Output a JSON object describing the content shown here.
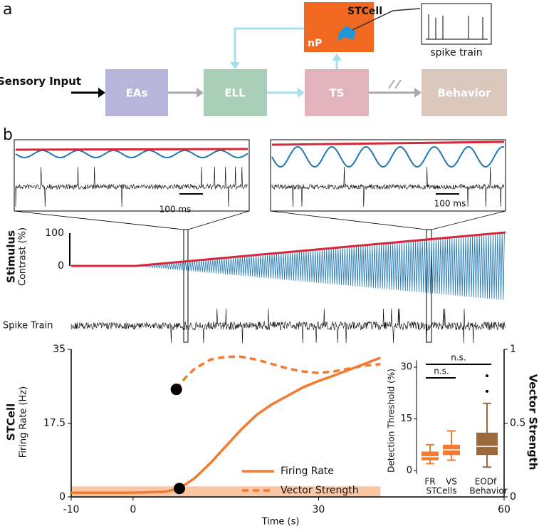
{
  "panel_labels": [
    "a",
    "b"
  ],
  "diagram": {
    "input": "Sensory Input",
    "nodes": [
      "EAs",
      "ELL",
      "TS",
      "Behavior"
    ],
    "cell": "STCell",
    "nucleus": "nP",
    "recording": "spike train"
  },
  "traces": {
    "stimulus": "Stimulus",
    "contrast": "Contrast (%)",
    "contrast_ticks": [
      0,
      100
    ],
    "spikes": "Spike Train",
    "scale_bars": [
      "100 ms",
      "100 ms"
    ]
  },
  "chart_data": [
    {
      "type": "line",
      "title": "STCell",
      "y_label": "Firing Rate (Hz)",
      "y2_label": "Vector Strength",
      "x_label": "Time (s)",
      "xlim": [
        -10,
        60
      ],
      "xticks": [
        -10,
        0,
        30,
        60
      ],
      "ylim": [
        0,
        35
      ],
      "yticks": [
        0,
        17.5,
        35
      ],
      "y2lim": [
        0,
        1
      ],
      "y2ticks": [
        0,
        0.5,
        1
      ],
      "noise_band": {
        "x": [
          -10,
          40
        ],
        "y": [
          0,
          2.5
        ],
        "color": "#f9c7a6"
      },
      "series": [
        {
          "name": "Firing Rate",
          "color": "#f47a30",
          "dash": false,
          "x": [
            -10,
            -5,
            0,
            5,
            7.5,
            10,
            12.5,
            15,
            17.5,
            20,
            22.5,
            25,
            27.5,
            30,
            32.5,
            35,
            37.5,
            40
          ],
          "values": [
            1,
            1,
            1,
            1.2,
            2,
            4.5,
            8,
            12,
            16,
            19.5,
            22,
            24,
            26,
            27.5,
            28.8,
            30.2,
            31.6,
            33
          ]
        },
        {
          "name": "Vector Strength",
          "color": "#f47a30",
          "dash": true,
          "axis": "y2",
          "x": [
            7,
            8.5,
            10,
            12.5,
            15,
            17.5,
            20,
            22.5,
            25,
            27.5,
            30,
            32.5,
            35,
            37.5,
            40
          ],
          "values": [
            0.73,
            0.81,
            0.87,
            0.93,
            0.95,
            0.95,
            0.93,
            0.9,
            0.87,
            0.85,
            0.84,
            0.85,
            0.87,
            0.89,
            0.9
          ]
        }
      ],
      "markers": [
        {
          "x": 7,
          "y": 25.5
        },
        {
          "x": 7.5,
          "y": 2
        }
      ],
      "legend": "lower right"
    },
    {
      "type": "box",
      "y_label": "Detection Threshold (%)",
      "ylim": [
        -1,
        32
      ],
      "yticks": [
        0,
        15,
        30
      ],
      "categories": [
        "FR",
        "VS",
        "EODf"
      ],
      "groups": [
        "STCells",
        "Behavior"
      ],
      "boxes": [
        {
          "min": 2,
          "q1": 3,
          "median": 4,
          "q3": 5.5,
          "max": 7.5,
          "outliers": [],
          "color": "#f47a30"
        },
        {
          "min": 3,
          "q1": 4.5,
          "median": 6,
          "q3": 7.5,
          "max": 11.5,
          "outliers": [],
          "color": "#f47a30"
        },
        {
          "min": 1,
          "q1": 4.5,
          "median": 7,
          "q3": 11,
          "max": 19.5,
          "outliers": [
            23,
            27.5
          ],
          "color": "#9b6a3c"
        }
      ],
      "annotations": [
        "n.s.",
        "n.s."
      ]
    }
  ]
}
